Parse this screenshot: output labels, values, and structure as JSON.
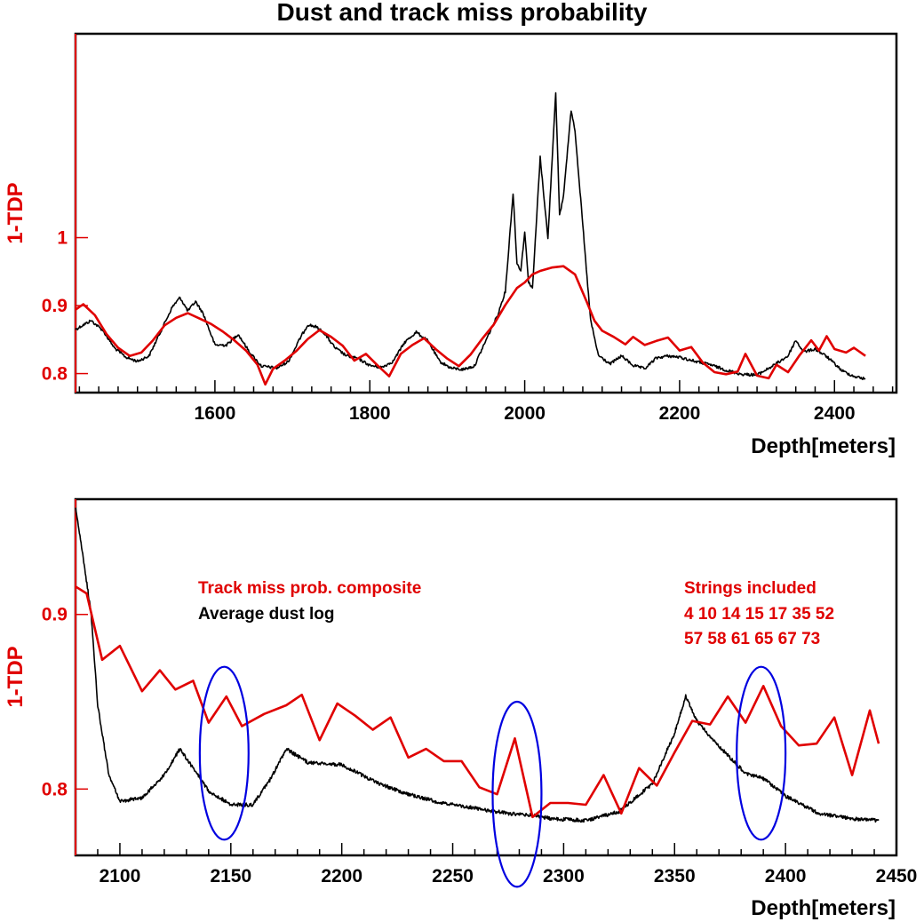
{
  "colors": {
    "track": "#e00000",
    "dust": "#000000",
    "highlight": "#0000e0",
    "background": "#ffffff"
  },
  "chart_data": [
    {
      "type": "line",
      "title": "Dust and track miss probability",
      "xlabel": "Depth[meters]",
      "ylabel": "1-TDP",
      "xlim": [
        1420,
        2480
      ],
      "ylim": [
        0.772,
        1.3
      ],
      "x_ticks": [
        1600,
        1800,
        2000,
        2200,
        2400
      ],
      "y_ticks": [
        0.8,
        0.9,
        1
      ],
      "x_tick_labels": [
        "1600",
        "1800",
        "2000",
        "2200",
        "2400"
      ],
      "y_tick_labels": [
        "0.8",
        "0.9",
        "1"
      ],
      "grid": false,
      "series": [
        {
          "name": "Track miss prob. composite",
          "color": "#e00000",
          "x": [
            1420,
            1430,
            1445,
            1460,
            1475,
            1490,
            1505,
            1520,
            1535,
            1550,
            1565,
            1580,
            1595,
            1610,
            1625,
            1640,
            1655,
            1665,
            1675,
            1690,
            1705,
            1720,
            1735,
            1750,
            1765,
            1780,
            1795,
            1810,
            1825,
            1840,
            1855,
            1870,
            1885,
            1900,
            1915,
            1930,
            1945,
            1960,
            1975,
            1990,
            2000,
            2010,
            2020,
            2035,
            2050,
            2065,
            2080,
            2090,
            2100,
            2115,
            2130,
            2140,
            2155,
            2170,
            2185,
            2200,
            2215,
            2230,
            2245,
            2260,
            2275,
            2285,
            2300,
            2315,
            2325,
            2340,
            2355,
            2370,
            2380,
            2390,
            2400,
            2415,
            2425,
            2440
          ],
          "values": [
            0.894,
            0.902,
            0.886,
            0.858,
            0.838,
            0.826,
            0.831,
            0.849,
            0.871,
            0.882,
            0.889,
            0.881,
            0.873,
            0.862,
            0.849,
            0.834,
            0.813,
            0.784,
            0.807,
            0.819,
            0.833,
            0.851,
            0.864,
            0.854,
            0.841,
            0.819,
            0.829,
            0.812,
            0.796,
            0.829,
            0.842,
            0.852,
            0.836,
            0.822,
            0.811,
            0.828,
            0.851,
            0.872,
            0.901,
            0.926,
            0.934,
            0.946,
            0.951,
            0.956,
            0.958,
            0.946,
            0.906,
            0.878,
            0.863,
            0.854,
            0.843,
            0.854,
            0.842,
            0.848,
            0.853,
            0.834,
            0.839,
            0.816,
            0.802,
            0.799,
            0.803,
            0.829,
            0.797,
            0.793,
            0.813,
            0.802,
            0.827,
            0.849,
            0.834,
            0.855,
            0.836,
            0.831,
            0.838,
            0.826
          ]
        },
        {
          "name": "Average dust log",
          "color": "#000000",
          "x": [
            1420,
            1440,
            1455,
            1470,
            1485,
            1500,
            1515,
            1530,
            1545,
            1555,
            1565,
            1575,
            1585,
            1600,
            1615,
            1630,
            1645,
            1660,
            1680,
            1695,
            1710,
            1720,
            1730,
            1740,
            1755,
            1770,
            1785,
            1800,
            1815,
            1830,
            1845,
            1860,
            1875,
            1890,
            1905,
            1920,
            1935,
            1950,
            1965,
            1975,
            1985,
            1990,
            1995,
            2000,
            2005,
            2010,
            2020,
            2030,
            2040,
            2045,
            2050,
            2060,
            2065,
            2075,
            2085,
            2095,
            2110,
            2125,
            2140,
            2155,
            2170,
            2185,
            2200,
            2220,
            2240,
            2260,
            2280,
            2300,
            2320,
            2340,
            2350,
            2360,
            2375,
            2390,
            2410,
            2425,
            2440
          ],
          "values": [
            0.865,
            0.878,
            0.864,
            0.838,
            0.824,
            0.818,
            0.826,
            0.862,
            0.898,
            0.912,
            0.892,
            0.906,
            0.888,
            0.842,
            0.842,
            0.858,
            0.831,
            0.811,
            0.808,
            0.818,
            0.852,
            0.872,
            0.869,
            0.861,
            0.838,
            0.826,
            0.822,
            0.812,
            0.809,
            0.818,
            0.846,
            0.861,
            0.848,
            0.818,
            0.808,
            0.806,
            0.811,
            0.849,
            0.886,
            0.921,
            1.065,
            0.962,
            0.952,
            1.008,
            0.935,
            0.925,
            1.118,
            0.998,
            1.215,
            1.032,
            1.061,
            1.188,
            1.158,
            1.018,
            0.879,
            0.827,
            0.814,
            0.826,
            0.812,
            0.807,
            0.823,
            0.826,
            0.824,
            0.818,
            0.813,
            0.805,
            0.799,
            0.798,
            0.811,
            0.826,
            0.849,
            0.832,
            0.836,
            0.825,
            0.804,
            0.796,
            0.792
          ]
        }
      ]
    },
    {
      "type": "line",
      "title": "",
      "xlabel": "Depth[meters]",
      "ylabel": "1-TDP",
      "xlim": [
        2080,
        2450
      ],
      "ylim": [
        0.762,
        0.966
      ],
      "x_ticks": [
        2100,
        2150,
        2200,
        2250,
        2300,
        2350,
        2400,
        2450
      ],
      "y_ticks": [
        0.8,
        0.9
      ],
      "x_tick_labels": [
        "2100",
        "2150",
        "2200",
        "2250",
        "2300",
        "2350",
        "2400",
        "2450"
      ],
      "y_tick_labels": [
        "0.8",
        "0.9"
      ],
      "grid": false,
      "legend_text": [
        "Track miss prob. composite",
        "Average dust log"
      ],
      "strings_label": "Strings included",
      "strings_lines": [
        "4 10 14 15 17 35 52",
        "57 58 61 65 67 73"
      ],
      "highlight_ellipses": [
        {
          "cx": 2147,
          "cy": 0.8205,
          "rx": 11,
          "ry": 0.0495
        },
        {
          "cx": 2279,
          "cy": 0.797,
          "rx": 11,
          "ry": 0.053
        },
        {
          "cx": 2389,
          "cy": 0.8205,
          "rx": 11,
          "ry": 0.0495
        }
      ],
      "series": [
        {
          "name": "Track miss prob. composite",
          "color": "#e00000",
          "x": [
            2080,
            2085,
            2092,
            2100,
            2110,
            2118,
            2125,
            2133,
            2140,
            2148,
            2155,
            2165,
            2175,
            2182,
            2190,
            2198,
            2206,
            2214,
            2222,
            2230,
            2238,
            2246,
            2254,
            2262,
            2270,
            2278,
            2286,
            2294,
            2302,
            2310,
            2318,
            2326,
            2334,
            2342,
            2350,
            2358,
            2366,
            2374,
            2382,
            2390,
            2398,
            2406,
            2414,
            2422,
            2430,
            2438,
            2442
          ],
          "values": [
            0.916,
            0.912,
            0.874,
            0.882,
            0.856,
            0.868,
            0.857,
            0.862,
            0.838,
            0.853,
            0.836,
            0.843,
            0.848,
            0.854,
            0.828,
            0.849,
            0.842,
            0.834,
            0.841,
            0.818,
            0.823,
            0.816,
            0.816,
            0.801,
            0.797,
            0.829,
            0.784,
            0.792,
            0.792,
            0.791,
            0.808,
            0.786,
            0.812,
            0.802,
            0.821,
            0.839,
            0.837,
            0.853,
            0.838,
            0.859,
            0.836,
            0.825,
            0.826,
            0.841,
            0.808,
            0.845,
            0.826
          ]
        },
        {
          "name": "Average dust log",
          "color": "#000000",
          "x": [
            2080,
            2083,
            2087,
            2090,
            2095,
            2100,
            2110,
            2120,
            2127,
            2133,
            2140,
            2150,
            2160,
            2168,
            2175,
            2185,
            2200,
            2215,
            2230,
            2245,
            2260,
            2275,
            2285,
            2295,
            2310,
            2325,
            2340,
            2350,
            2355,
            2360,
            2368,
            2375,
            2382,
            2390,
            2400,
            2415,
            2430,
            2442
          ],
          "values": [
            0.962,
            0.936,
            0.901,
            0.848,
            0.808,
            0.793,
            0.795,
            0.808,
            0.823,
            0.812,
            0.799,
            0.791,
            0.791,
            0.806,
            0.823,
            0.815,
            0.814,
            0.804,
            0.797,
            0.792,
            0.789,
            0.786,
            0.785,
            0.783,
            0.782,
            0.787,
            0.803,
            0.832,
            0.853,
            0.839,
            0.827,
            0.818,
            0.809,
            0.806,
            0.796,
            0.786,
            0.783,
            0.782
          ]
        }
      ]
    }
  ]
}
